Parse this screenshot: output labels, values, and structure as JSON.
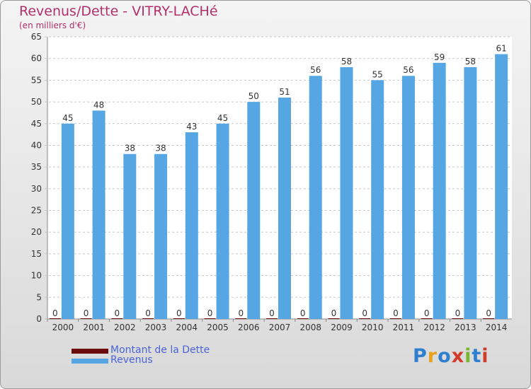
{
  "title": "Revenus/Dette - VITRY-LACHé",
  "subtitle": "(en milliers d'€)",
  "chart_data": {
    "type": "bar",
    "categories": [
      "2000",
      "2001",
      "2002",
      "2003",
      "2004",
      "2005",
      "2006",
      "2007",
      "2008",
      "2009",
      "2010",
      "2011",
      "2012",
      "2013",
      "2014"
    ],
    "series": [
      {
        "name": "Montant de la Dette",
        "color": "#6b0a0a",
        "values": [
          0,
          0,
          0,
          0,
          0,
          0,
          0,
          0,
          0,
          0,
          0,
          0,
          0,
          0,
          0
        ]
      },
      {
        "name": "Revenus",
        "color": "#55a6e3",
        "values": [
          45,
          48,
          38,
          38,
          43,
          45,
          50,
          51,
          56,
          58,
          55,
          56,
          59,
          58,
          61
        ]
      }
    ],
    "ylim": [
      0,
      65
    ],
    "yticks": [
      0,
      5,
      10,
      15,
      20,
      25,
      30,
      35,
      40,
      45,
      50,
      55,
      60,
      65
    ],
    "grid": true,
    "legend": "bottom-left"
  },
  "legend": {
    "debt_label": "Montant de la Dette",
    "revenue_label": "Revenus"
  },
  "logo": {
    "letters": [
      "P",
      "r",
      "o",
      "x",
      "i",
      "t",
      "i"
    ],
    "colors": [
      "#2f7fd0",
      "#e8a21c",
      "#2f7fd0",
      "#d23a2a",
      "#7cb82f",
      "#2f7fd0",
      "#d23a2a"
    ]
  }
}
